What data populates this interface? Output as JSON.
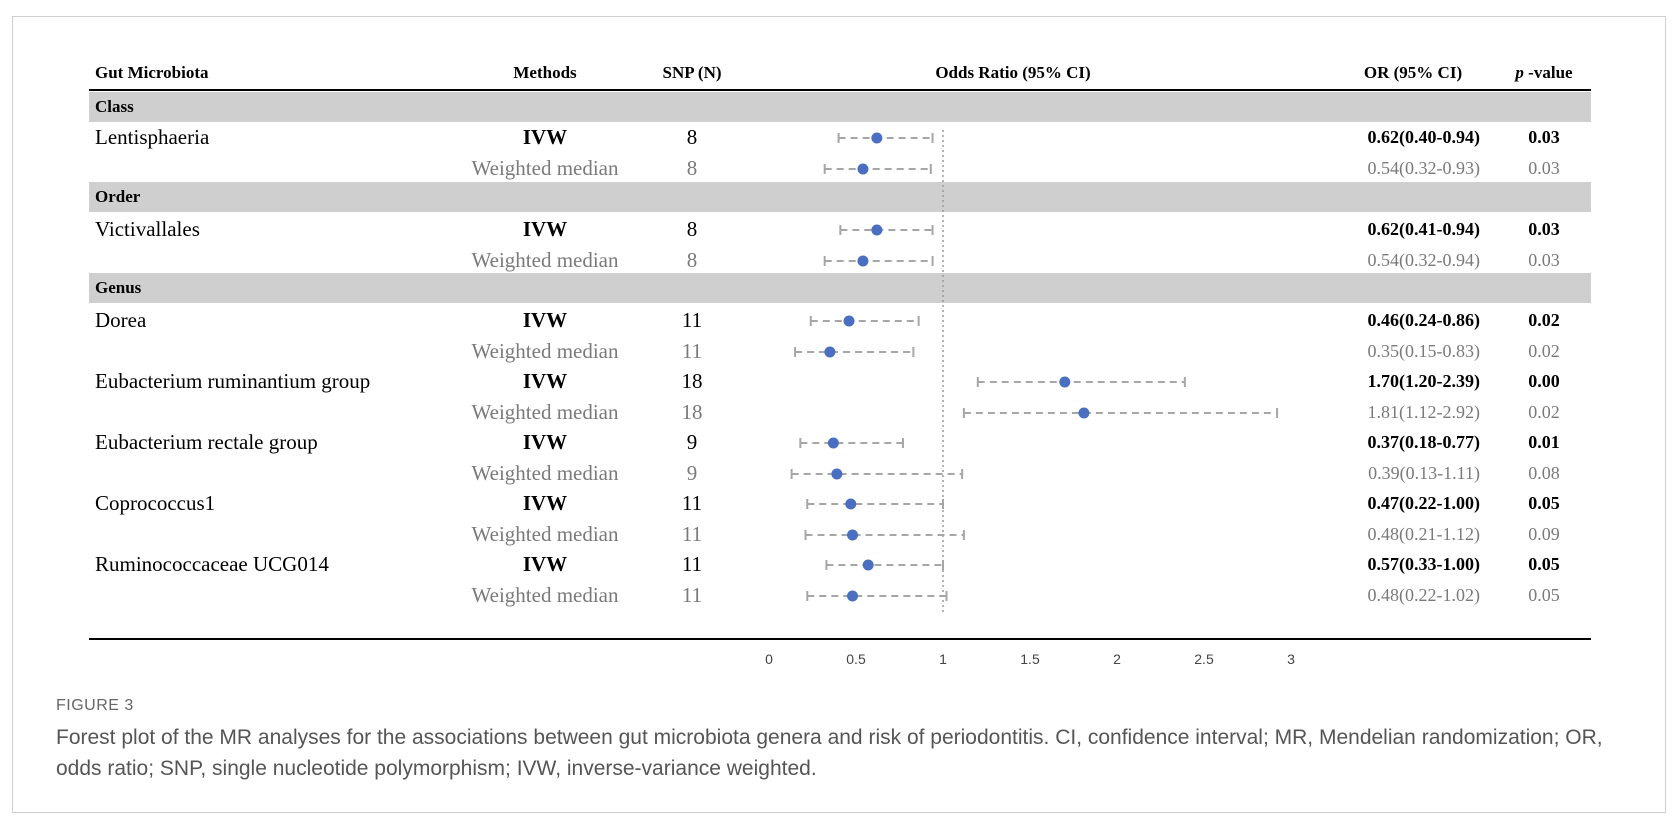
{
  "headers": {
    "taxon": "Gut Microbiota",
    "method": "Methods",
    "snp": "SNP (N)",
    "plot": "Odds Ratio (95% CI)",
    "or": "OR (95% CI)",
    "p_italic": "p",
    "p_rest": " -value"
  },
  "bands": [
    "Class",
    "Order",
    "Genus"
  ],
  "rows": [
    {
      "taxon": "Lentisphaeria",
      "method": "IVW",
      "snp": "8",
      "or_text": "0.62(0.40-0.94)",
      "p": "0.03"
    },
    {
      "taxon": "",
      "method": "Weighted median",
      "snp": "8",
      "or_text": "0.54(0.32-0.93)",
      "p": "0.03"
    },
    {
      "taxon": "Victivallales",
      "method": "IVW",
      "snp": "8",
      "or_text": "0.62(0.41-0.94)",
      "p": "0.03"
    },
    {
      "taxon": "",
      "method": "Weighted median",
      "snp": "8",
      "or_text": "0.54(0.32-0.94)",
      "p": "0.03"
    },
    {
      "taxon": "Dorea",
      "method": "IVW",
      "snp": "11",
      "or_text": "0.46(0.24-0.86)",
      "p": "0.02"
    },
    {
      "taxon": "",
      "method": "Weighted median",
      "snp": "11",
      "or_text": "0.35(0.15-0.83)",
      "p": "0.02"
    },
    {
      "taxon": "Eubacterium ruminantium group",
      "method": "IVW",
      "snp": "18",
      "or_text": "1.70(1.20-2.39)",
      "p": "0.00"
    },
    {
      "taxon": "",
      "method": "Weighted median",
      "snp": "18",
      "or_text": "1.81(1.12-2.92)",
      "p": "0.02"
    },
    {
      "taxon": "Eubacterium rectale group",
      "method": "IVW",
      "snp": "9",
      "or_text": "0.37(0.18-0.77)",
      "p": "0.01"
    },
    {
      "taxon": "",
      "method": "Weighted median",
      "snp": "9",
      "or_text": "0.39(0.13-1.11)",
      "p": "0.08"
    },
    {
      "taxon": "Coprococcus1",
      "method": "IVW",
      "snp": "11",
      "or_text": "0.47(0.22-1.00)",
      "p": "0.05"
    },
    {
      "taxon": "",
      "method": "Weighted median",
      "snp": "11",
      "or_text": "0.48(0.21-1.12)",
      "p": "0.09"
    },
    {
      "taxon": "Ruminococcaceae UCG014",
      "method": "IVW",
      "snp": "11",
      "or_text": "0.57(0.33-1.00)",
      "p": "0.05"
    },
    {
      "taxon": "",
      "method": "Weighted median",
      "snp": "11",
      "or_text": "0.48(0.22-1.02)",
      "p": "0.05"
    }
  ],
  "chart_data": {
    "type": "scatter",
    "title": "Odds Ratio (95% CI)",
    "xlim": [
      0,
      3
    ],
    "xticks": [
      "0",
      "0.5",
      "1",
      "1.5",
      "2",
      "2.5",
      "3"
    ],
    "reference_line": 1,
    "point_color": "#4a6fc1",
    "ci_color": "#a6a6a6",
    "series": [
      {
        "or": 0.62,
        "lo": 0.4,
        "hi": 0.94
      },
      {
        "or": 0.54,
        "lo": 0.32,
        "hi": 0.93
      },
      {
        "or": 0.62,
        "lo": 0.41,
        "hi": 0.94
      },
      {
        "or": 0.54,
        "lo": 0.32,
        "hi": 0.94
      },
      {
        "or": 0.46,
        "lo": 0.24,
        "hi": 0.86
      },
      {
        "or": 0.35,
        "lo": 0.15,
        "hi": 0.83
      },
      {
        "or": 1.7,
        "lo": 1.2,
        "hi": 2.39
      },
      {
        "or": 1.81,
        "lo": 1.12,
        "hi": 2.92
      },
      {
        "or": 0.37,
        "lo": 0.18,
        "hi": 0.77
      },
      {
        "or": 0.39,
        "lo": 0.13,
        "hi": 1.11
      },
      {
        "or": 0.47,
        "lo": 0.22,
        "hi": 1.0
      },
      {
        "or": 0.48,
        "lo": 0.21,
        "hi": 1.12
      },
      {
        "or": 0.57,
        "lo": 0.33,
        "hi": 1.0
      },
      {
        "or": 0.48,
        "lo": 0.22,
        "hi": 1.02
      }
    ]
  },
  "figure_label": "FIGURE 3",
  "caption": "Forest plot of the MR analyses for the associations between gut microbiota genera and risk of periodontitis. CI, confidence interval; MR, Mendelian randomization; OR, odds ratio; SNP, single nucleotide polymorphism; IVW, inverse-variance weighted."
}
